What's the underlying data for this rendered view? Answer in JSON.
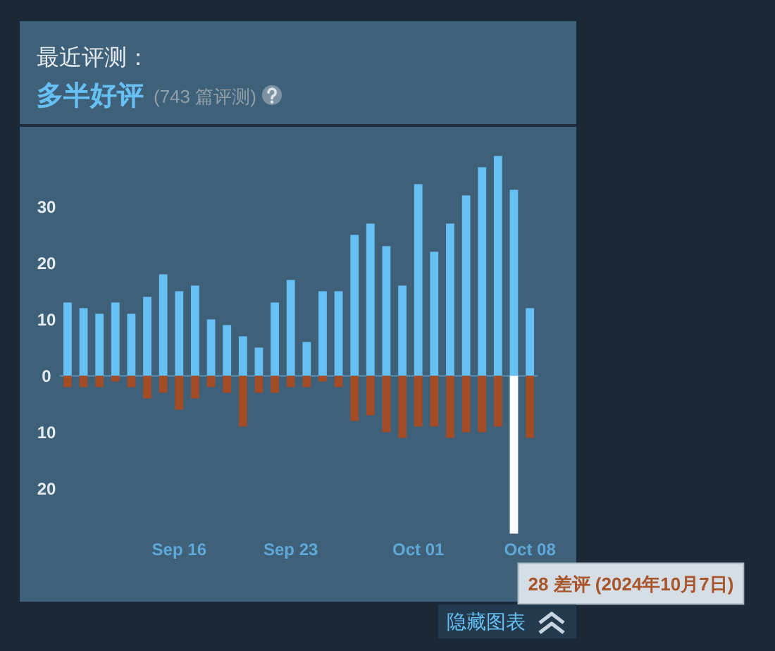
{
  "chart_data": {
    "type": "bar",
    "title": "最近评测：",
    "subtitle": "多半好评",
    "annotations": [
      "(743 篇评测)",
      {
        "text": "28 差评 (2024年10月7日)",
        "x": "2024-10-07",
        "y": -28
      },
      "隐藏图表"
    ],
    "x": [
      "2024-09-09",
      "2024-09-10",
      "2024-09-11",
      "2024-09-12",
      "2024-09-13",
      "2024-09-14",
      "2024-09-15",
      "2024-09-16",
      "2024-09-17",
      "2024-09-18",
      "2024-09-19",
      "2024-09-20",
      "2024-09-21",
      "2024-09-22",
      "2024-09-23",
      "2024-09-24",
      "2024-09-25",
      "2024-09-26",
      "2024-09-27",
      "2024-09-28",
      "2024-09-29",
      "2024-09-30",
      "2024-10-01",
      "2024-10-02",
      "2024-10-03",
      "2024-10-04",
      "2024-10-05",
      "2024-10-06",
      "2024-10-07",
      "2024-10-08"
    ],
    "series": [
      {
        "color": "#66c0f4",
        "values": [
          13,
          12,
          11,
          13,
          11,
          14,
          18,
          15,
          16,
          10,
          9,
          7,
          5,
          13,
          17,
          6,
          15,
          15,
          25,
          27,
          23,
          16,
          34,
          22,
          27,
          32,
          37,
          39,
          33,
          12
        ]
      },
      {
        "colors": [
          "#a34c25",
          "#a34c25",
          "#a34c25",
          "#a34c25",
          "#a34c25",
          "#a34c25",
          "#a34c25",
          "#a34c25",
          "#a34c25",
          "#a34c25",
          "#a34c25",
          "#a34c25",
          "#a34c25",
          "#a34c25",
          "#a34c25",
          "#a34c25",
          "#a34c25",
          "#a34c25",
          "#a34c25",
          "#a34c25",
          "#a34c25",
          "#a34c25",
          "#a34c25",
          "#a34c25",
          "#a34c25",
          "#a34c25",
          "#a34c25",
          "#a34c25",
          "#ffffff",
          "#a34c25"
        ],
        "values": [
          -2,
          -2,
          -2,
          -1,
          -2,
          -4,
          -3,
          -6,
          -4,
          -2,
          -3,
          -9,
          -3,
          -3,
          -2,
          -2,
          -1,
          -2,
          -8,
          -7,
          -10,
          -11,
          -9,
          -9,
          -11,
          -10,
          -10,
          -9,
          -28,
          -11
        ]
      }
    ],
    "stacked": true,
    "ref_lines": [
      {
        "axis": "y",
        "value": 0,
        "color": "#5b8fb3"
      }
    ],
    "xlim": [
      "2024-09-08T12:00",
      "2024-10-08T12:00"
    ],
    "xticks": [
      {
        "value": "2024-09-16",
        "label": "Sep 16"
      },
      {
        "value": "2024-09-23",
        "label": "Sep 23"
      },
      {
        "value": "2024-10-01",
        "label": "Oct 01"
      },
      {
        "value": "2024-10-08",
        "label": "Oct 08"
      }
    ],
    "ylim": [
      -28,
      39
    ],
    "yticks": [
      {
        "value": -20,
        "label": "20"
      },
      {
        "value": -10,
        "label": "10"
      },
      0,
      10,
      20,
      30
    ]
  }
}
